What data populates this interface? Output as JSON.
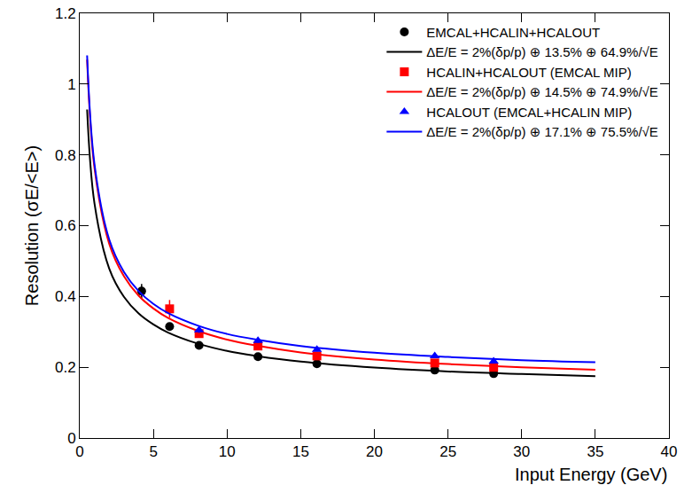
{
  "chart_data": {
    "type": "scatter",
    "x_label": "Input Energy (GeV)",
    "y_label": "Resolution (σE/<E>)",
    "xlim": [
      0,
      40
    ],
    "xticks": [
      0,
      5,
      10,
      15,
      20,
      25,
      30,
      35,
      40
    ],
    "ylim": [
      0,
      1.2
    ],
    "yticks": [
      0,
      0.2,
      0.4,
      0.6,
      0.8,
      1,
      1.2
    ],
    "grid": false,
    "legend": "upper right",
    "series": [
      {
        "name": "EMCAL+HCALIN+HCALOUT",
        "type": "scatter",
        "marker": "circle",
        "color": "#000000",
        "x": [
          4.2,
          6.1,
          8.1,
          12.1,
          16.1,
          24.1,
          28.1
        ],
        "values": [
          0.415,
          0.315,
          0.262,
          0.23,
          0.21,
          0.192,
          0.182
        ],
        "errors": [
          0.02,
          0.01,
          0.008,
          0.006,
          0.005,
          0.005,
          0.005
        ]
      },
      {
        "name": "ΔE/E = 2%(δp/p) ⊕ 13.5% ⊕ 64.9%/√E",
        "type": "line",
        "line_style": "solid",
        "color": "#000000",
        "x": [
          0.5,
          1,
          2,
          3,
          4,
          5,
          6,
          8,
          10,
          12,
          15,
          20,
          25,
          30,
          35
        ],
        "values": [
          0.928,
          0.663,
          0.479,
          0.399,
          0.352,
          0.321,
          0.298,
          0.267,
          0.246,
          0.232,
          0.216,
          0.199,
          0.188,
          0.181,
          0.175
        ]
      },
      {
        "name": "HCALIN+HCALOUT (EMCAL MIP)",
        "type": "scatter",
        "marker": "square",
        "color": "#ff0000",
        "x": [
          6.1,
          8.1,
          12.1,
          16.1,
          24.1,
          28.1
        ],
        "values": [
          0.365,
          0.295,
          0.26,
          0.232,
          0.212,
          0.2
        ],
        "errors": [
          0.025,
          0.01,
          0.008,
          0.006,
          0.006,
          0.005
        ]
      },
      {
        "name": "ΔE/E = 2%(δp/p) ⊕ 14.5% ⊕ 74.9%/√E",
        "type": "line",
        "line_style": "solid",
        "color": "#ff0000",
        "x": [
          0.5,
          1,
          2,
          3,
          4,
          5,
          6,
          8,
          10,
          12,
          15,
          20,
          25,
          30,
          35
        ],
        "values": [
          1.069,
          0.763,
          0.549,
          0.457,
          0.402,
          0.366,
          0.339,
          0.303,
          0.278,
          0.261,
          0.242,
          0.222,
          0.209,
          0.2,
          0.193
        ]
      },
      {
        "name": "HCALOUT (EMCAL+HCALIN MIP)",
        "type": "scatter",
        "marker": "triangle-up",
        "color": "#0000ff",
        "x": [
          8.1,
          12.1,
          16.1,
          24.1,
          28.1
        ],
        "values": [
          0.305,
          0.275,
          0.25,
          0.232,
          0.217
        ],
        "errors": [
          0.008,
          0.006,
          0.005,
          0.005,
          0.005
        ]
      },
      {
        "name": "ΔE/E = 2%(δp/p) ⊕ 17.1% ⊕ 75.5%/√E",
        "type": "line",
        "line_style": "solid",
        "color": "#0000ff",
        "x": [
          0.5,
          1,
          2,
          3,
          4,
          5,
          6,
          8,
          10,
          12,
          15,
          20,
          25,
          30,
          35
        ],
        "values": [
          1.081,
          0.774,
          0.561,
          0.469,
          0.415,
          0.379,
          0.353,
          0.318,
          0.294,
          0.278,
          0.26,
          0.241,
          0.229,
          0.22,
          0.214
        ]
      }
    ]
  }
}
